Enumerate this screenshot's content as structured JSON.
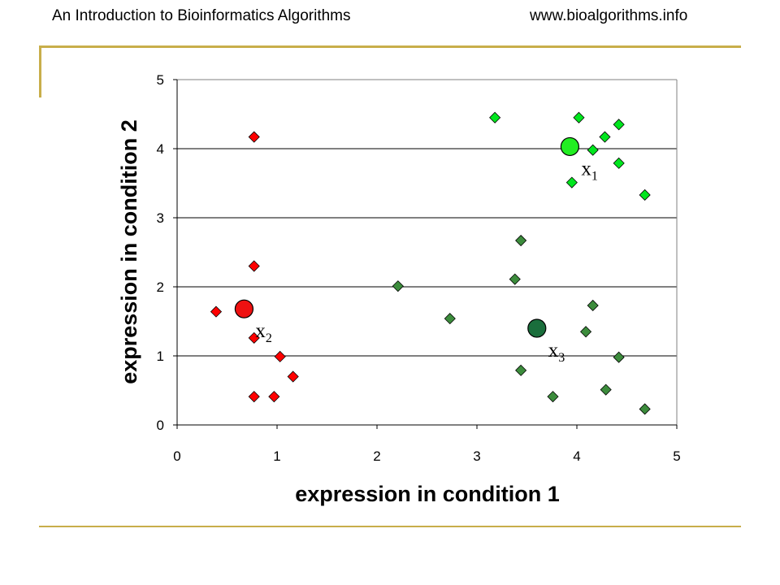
{
  "slide": {
    "header_left": "An Introduction to Bioinformatics Algorithms",
    "header_right": "www.bioalgorithms.info",
    "accent_color": "#c8ae4a"
  },
  "chart_data": {
    "type": "scatter",
    "title": "",
    "xlabel": "expression in condition 1",
    "ylabel": "expression in condition 2",
    "xlim": [
      0,
      5
    ],
    "ylim": [
      0,
      5
    ],
    "xticks": [
      0,
      1,
      2,
      3,
      4,
      5
    ],
    "yticks": [
      0,
      1,
      2,
      3,
      4,
      5
    ],
    "grid": "horizontal",
    "legend": "none",
    "series": [
      {
        "color": "#ff0000",
        "marker": "diamond",
        "points": [
          {
            "x": 0.77,
            "y": 4.17
          },
          {
            "x": 0.77,
            "y": 2.3
          },
          {
            "x": 0.39,
            "y": 1.64
          },
          {
            "x": 0.77,
            "y": 1.26
          },
          {
            "x": 1.03,
            "y": 0.99
          },
          {
            "x": 1.16,
            "y": 0.7
          },
          {
            "x": 0.77,
            "y": 0.41
          },
          {
            "x": 0.97,
            "y": 0.41
          }
        ]
      },
      {
        "color": "#00e61e",
        "marker": "diamond",
        "points": [
          {
            "x": 3.18,
            "y": 4.45
          },
          {
            "x": 4.02,
            "y": 4.45
          },
          {
            "x": 4.42,
            "y": 4.35
          },
          {
            "x": 4.28,
            "y": 4.17
          },
          {
            "x": 4.16,
            "y": 3.98
          },
          {
            "x": 4.42,
            "y": 3.79
          },
          {
            "x": 3.95,
            "y": 3.51
          },
          {
            "x": 4.68,
            "y": 3.33
          }
        ]
      },
      {
        "color": "#3c8c3c",
        "marker": "diamond",
        "points": [
          {
            "x": 2.21,
            "y": 2.01
          },
          {
            "x": 2.73,
            "y": 1.54
          },
          {
            "x": 3.44,
            "y": 2.67
          },
          {
            "x": 3.38,
            "y": 2.11
          },
          {
            "x": 4.16,
            "y": 1.73
          },
          {
            "x": 4.09,
            "y": 1.35
          },
          {
            "x": 4.42,
            "y": 0.98
          },
          {
            "x": 3.44,
            "y": 0.79
          },
          {
            "x": 3.76,
            "y": 0.41
          },
          {
            "x": 4.29,
            "y": 0.51
          },
          {
            "x": 4.68,
            "y": 0.23
          }
        ]
      }
    ],
    "centroids": [
      {
        "x": 3.93,
        "y": 4.03,
        "color": "#22ee22",
        "label": "x",
        "subscript": "1"
      },
      {
        "x": 0.67,
        "y": 1.68,
        "color": "#ee1111",
        "label": "x",
        "subscript": "2"
      },
      {
        "x": 3.6,
        "y": 1.4,
        "color": "#1a6e3c",
        "label": "x",
        "subscript": "3"
      }
    ]
  }
}
